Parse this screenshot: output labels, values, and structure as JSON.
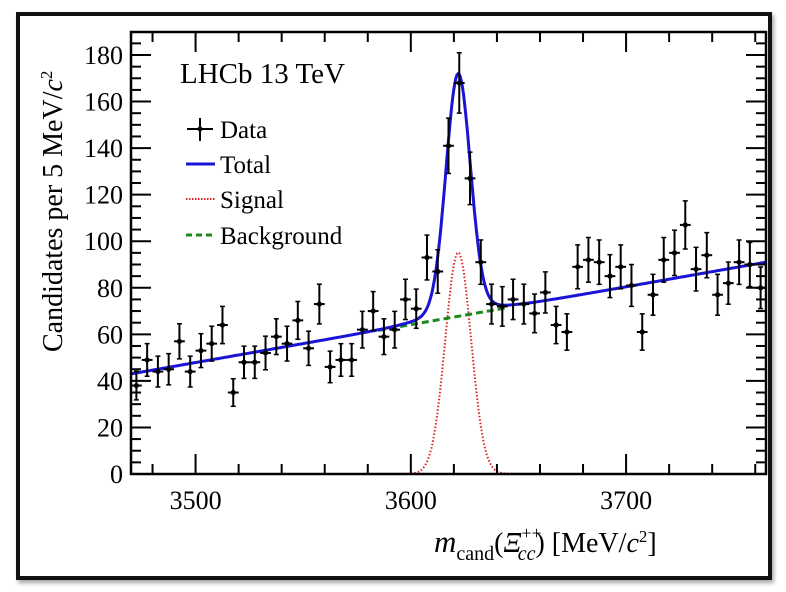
{
  "chart_data": {
    "type": "scatter",
    "title": "",
    "experiment_label": "LHCb 13 TeV",
    "xlabel": {
      "var": "m",
      "sub": "cand",
      "particle": "Ξ",
      "particle_sub": "cc",
      "particle_sup": "++",
      "unit_prefix": " [MeV/",
      "unit_c": "c",
      "unit_sup": "2",
      "unit_suffix": "]"
    },
    "ylabel": {
      "text": "Candidates per 5 MeV/",
      "c": "c",
      "sup": "2"
    },
    "xlim": [
      3470,
      3765
    ],
    "ylim": [
      0,
      190
    ],
    "x_ticks": [
      3500,
      3600,
      3700
    ],
    "x_tick_labels": [
      "3500",
      "3600",
      "3700"
    ],
    "y_ticks": [
      0,
      20,
      40,
      60,
      80,
      100,
      120,
      140,
      160,
      180
    ],
    "y_tick_labels": [
      "0",
      "20",
      "40",
      "60",
      "80",
      "100",
      "120",
      "140",
      "160",
      "180"
    ],
    "bin_width": 5,
    "legend": {
      "placement": "top-left",
      "entries": [
        {
          "label": "Data",
          "style": "errorbar",
          "color": "#000000"
        },
        {
          "label": "Total",
          "style": "solid",
          "color": "#1a14d6"
        },
        {
          "label": "Signal",
          "style": "dotted",
          "color": "#e02020"
        },
        {
          "label": "Background",
          "style": "dashed",
          "color": "#1a8a1a"
        }
      ]
    },
    "series": [
      {
        "name": "Data",
        "x": [
          3472.5,
          3477.5,
          3482.5,
          3487.5,
          3492.5,
          3497.5,
          3502.5,
          3507.5,
          3512.5,
          3517.5,
          3522.5,
          3527.5,
          3532.5,
          3537.5,
          3542.5,
          3547.5,
          3552.5,
          3557.5,
          3562.5,
          3567.5,
          3572.5,
          3577.5,
          3582.5,
          3587.5,
          3592.5,
          3597.5,
          3602.5,
          3607.5,
          3612.5,
          3617.5,
          3622.5,
          3627.5,
          3632.5,
          3637.5,
          3642.5,
          3647.5,
          3652.5,
          3657.5,
          3662.5,
          3667.5,
          3672.5,
          3677.5,
          3682.5,
          3687.5,
          3692.5,
          3697.5,
          3702.5,
          3707.5,
          3712.5,
          3717.5,
          3722.5,
          3727.5,
          3732.5,
          3737.5,
          3742.5,
          3747.5,
          3752.5,
          3757.5,
          3762.5
        ],
        "y": [
          38,
          49,
          44,
          45,
          57,
          44,
          53,
          56,
          64,
          35,
          48,
          48,
          52,
          59,
          56,
          66,
          54,
          73,
          46,
          49,
          49,
          62,
          70,
          59,
          62,
          75,
          71,
          93,
          87,
          141,
          168,
          127,
          91,
          73,
          72,
          75,
          73,
          69,
          78,
          64,
          61,
          89,
          92,
          91,
          85,
          89,
          81,
          61,
          77,
          92,
          95,
          107,
          88,
          94,
          77,
          82,
          91,
          90,
          80
        ]
      },
      {
        "name": "Total",
        "model": "background + signal",
        "background_line": {
          "at_3470": 43,
          "at_3765": 91
        },
        "signal_peak": {
          "mean": 3622,
          "sigma": 6.0,
          "amplitude": 95
        }
      },
      {
        "name": "Signal",
        "peak_x": 3622,
        "peak_y": 95,
        "sigma": 6.0
      },
      {
        "name": "Background",
        "y_at_xmin": 43,
        "y_at_xmax": 91,
        "drawn_range": [
          3585,
          3645
        ]
      }
    ],
    "grid": false,
    "colors": {
      "data": "#000000",
      "total": "#1a14d6",
      "signal": "#e02020",
      "background": "#1a8a1a"
    }
  }
}
